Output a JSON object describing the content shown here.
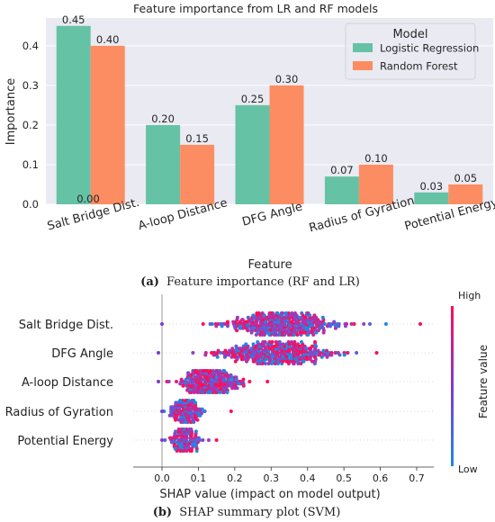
{
  "chart_data": [
    {
      "type": "bar",
      "title": "Feature importance from LR and RF models",
      "xlabel": "Feature",
      "ylabel": "Importance",
      "categories": [
        "Salt Bridge Dist.",
        "A-loop Distance",
        "DFG Angle",
        "Radius of Gyration",
        "Potential Energy"
      ],
      "series": [
        {
          "name": "Logistic Regression",
          "values": [
            0.45,
            0.2,
            0.25,
            0.07,
            0.03
          ],
          "color": "#66c2a5"
        },
        {
          "name": "Random Forest",
          "values": [
            0.4,
            0.15,
            0.3,
            0.1,
            0.05
          ],
          "color": "#fc8d62"
        }
      ],
      "extra_label": "0.00",
      "ylim": [
        0,
        0.47
      ],
      "yticks": [
        0.0,
        0.1,
        0.2,
        0.3,
        0.4
      ],
      "ytick_labels": [
        "0.0",
        "0.1",
        "0.2",
        "0.3",
        "0.4"
      ],
      "legend": {
        "title": "Model",
        "placement": "top-right"
      },
      "grid": true,
      "caption_letter": "(a)",
      "caption_text": "Feature importance (RF and LR)"
    },
    {
      "type": "scatter",
      "xlabel": "SHAP value (impact on model output)",
      "features": [
        "Salt Bridge Dist.",
        "DFG Angle",
        "A-loop Distance",
        "Radius of Gyration",
        "Potential Energy"
      ],
      "distributions": [
        {
          "center": 0.33,
          "spread": 0.075,
          "min": 0.0,
          "max": 0.71
        },
        {
          "center": 0.31,
          "spread": 0.075,
          "min": -0.01,
          "max": 0.59
        },
        {
          "center": 0.13,
          "spread": 0.04,
          "min": -0.01,
          "max": 0.29
        },
        {
          "center": 0.07,
          "spread": 0.02,
          "min": 0.0,
          "max": 0.19
        },
        {
          "center": 0.065,
          "spread": 0.018,
          "min": 0.0,
          "max": 0.15
        }
      ],
      "xlim": [
        -0.08,
        0.76
      ],
      "xticks": [
        0.0,
        0.1,
        0.2,
        0.3,
        0.4,
        0.5,
        0.6,
        0.7
      ],
      "xtick_labels": [
        "0.0",
        "0.1",
        "0.2",
        "0.3",
        "0.4",
        "0.5",
        "0.6",
        "0.7"
      ],
      "colorbar": {
        "label": "Feature value",
        "high": "High",
        "low": "Low",
        "color_low": "#1e88e5",
        "color_high": "#ff0d57"
      },
      "caption_letter": "(b)",
      "caption_text": "SHAP summary plot (SVM)"
    }
  ]
}
